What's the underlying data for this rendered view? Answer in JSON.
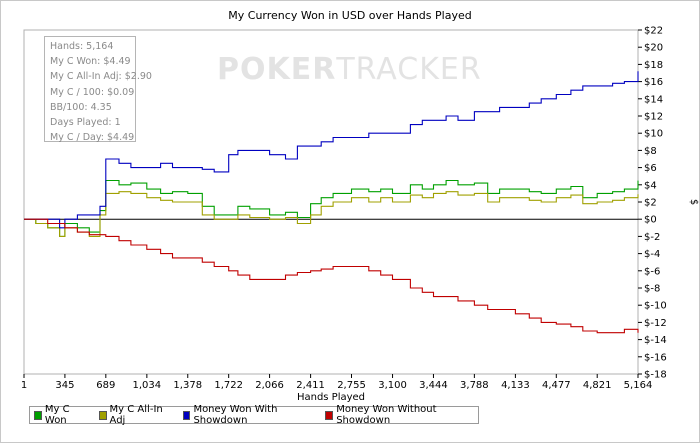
{
  "chart_data": {
    "type": "line",
    "title": "My Currency Won in USD over Hands Played",
    "xlabel": "Hands Played",
    "ylabel": "$",
    "xlim": [
      1,
      5164
    ],
    "ylim": [
      -18,
      22
    ],
    "x_ticks": [
      1,
      345,
      689,
      1034,
      1378,
      1722,
      2066,
      2411,
      2755,
      3100,
      3444,
      3788,
      4133,
      4477,
      4821,
      5164
    ],
    "x_tick_labels": [
      "1",
      "345",
      "689",
      "1,034",
      "1,378",
      "1,722",
      "2,066",
      "2,411",
      "2,755",
      "3,100",
      "3,444",
      "3,788",
      "4,133",
      "4,477",
      "4,821",
      "5,164"
    ],
    "y_ticks": [
      22,
      20,
      18,
      16,
      14,
      12,
      10,
      8,
      6,
      4,
      2,
      0,
      -2,
      -4,
      -6,
      -8,
      -10,
      -12,
      -14,
      -16,
      -18
    ],
    "y_tick_labels": [
      "$22",
      "$20",
      "$18",
      "$16",
      "$14",
      "$12",
      "$10",
      "$8",
      "$6",
      "$4",
      "$2",
      "$0",
      "$-2",
      "$-4",
      "$-6",
      "$-8",
      "$-10",
      "$-12",
      "$-14",
      "$-16",
      "$-18"
    ],
    "x": [
      1,
      100,
      200,
      300,
      345,
      450,
      550,
      640,
      689,
      800,
      900,
      1034,
      1150,
      1250,
      1378,
      1500,
      1600,
      1722,
      1800,
      1900,
      2066,
      2200,
      2300,
      2411,
      2500,
      2600,
      2755,
      2900,
      3000,
      3100,
      3250,
      3350,
      3444,
      3550,
      3650,
      3788,
      3900,
      4000,
      4133,
      4250,
      4350,
      4477,
      4600,
      4700,
      4821,
      4950,
      5050,
      5164
    ],
    "series": [
      {
        "name": "My C Won",
        "color": "#00a000",
        "values": [
          0,
          -0.5,
          -1,
          -2,
          -0.5,
          -1,
          -1.5,
          1,
          4.5,
          4,
          4.2,
          3.5,
          3,
          3.2,
          3,
          1.5,
          0.5,
          0.5,
          1.5,
          1.2,
          0.5,
          0.8,
          0.2,
          1.8,
          2.5,
          3,
          3.5,
          3.2,
          3.5,
          3,
          4,
          3.5,
          4,
          4.5,
          4,
          4.2,
          3,
          3.5,
          3.5,
          3.2,
          3,
          3.5,
          3.8,
          2.5,
          3,
          3.2,
          3.5,
          4.49
        ]
      },
      {
        "name": "My C All-In Adj",
        "color": "#a0a000",
        "values": [
          0,
          -0.5,
          -1,
          -2,
          -1,
          -1.5,
          -2,
          0.5,
          3,
          3.2,
          3,
          2.5,
          2.2,
          2,
          2,
          0.5,
          0,
          0,
          0.5,
          0.2,
          0,
          0.2,
          -0.5,
          0.5,
          1.5,
          2,
          2.5,
          2,
          2.5,
          2,
          2.8,
          2.5,
          3,
          3.2,
          2.8,
          3,
          2,
          2.5,
          2.5,
          2.2,
          2,
          2.5,
          2.8,
          1.8,
          2,
          2.2,
          2.5,
          2.9
        ]
      },
      {
        "name": "Money Won With Showdown",
        "color": "#0000c0",
        "values": [
          0,
          0,
          0,
          -1,
          0,
          0.5,
          0.5,
          1.5,
          7,
          6.5,
          6,
          6,
          6.5,
          6,
          6,
          5.8,
          5.5,
          7.5,
          8,
          8,
          7.5,
          7,
          8.5,
          8.5,
          9,
          9.5,
          9.5,
          10,
          10,
          10,
          11,
          11.5,
          11.5,
          12,
          11.5,
          12.5,
          12.5,
          13,
          13,
          13.5,
          14,
          14.5,
          15,
          15.5,
          15.5,
          15.8,
          16,
          17.2
        ]
      },
      {
        "name": "Money Won Without Showdown",
        "color": "#c00000",
        "values": [
          0,
          0,
          -0.5,
          -0.5,
          -1,
          -1.5,
          -1.8,
          -1.8,
          -2,
          -2.5,
          -3,
          -3.5,
          -4,
          -4.5,
          -4.5,
          -5,
          -5.5,
          -6,
          -6.5,
          -7,
          -7,
          -6.5,
          -6.2,
          -6,
          -5.8,
          -5.5,
          -5.5,
          -6,
          -6.5,
          -7,
          -8,
          -8.5,
          -9,
          -9,
          -9.5,
          -10,
          -10.5,
          -10.5,
          -11,
          -11.5,
          -12,
          -12.2,
          -12.5,
          -13,
          -13.2,
          -13.2,
          -12.8,
          -13.2
        ]
      }
    ],
    "legend_position": "bottom-left",
    "grid": false
  },
  "stats": {
    "lines": [
      "Hands: 5,164",
      "My C Won: $4.49",
      "My C All-In Adj: $2.90",
      "My C / 100: $0.09",
      "BB/100: 4.35",
      "Days Played: 1",
      "My C / Day: $4.49"
    ]
  },
  "watermark": {
    "left": "POKER",
    "right": "TRACKER"
  }
}
